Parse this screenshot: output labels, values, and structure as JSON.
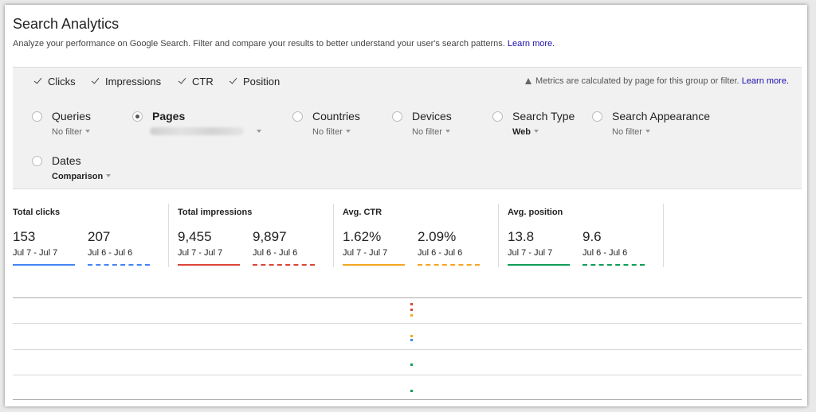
{
  "header": {
    "title": "Search Analytics",
    "description": "Analyze your performance on Google Search. Filter and compare your results to better understand your user's search patterns.",
    "learn_more": "Learn more."
  },
  "metrics": {
    "items": [
      {
        "label": "Clicks",
        "checked": true
      },
      {
        "label": "Impressions",
        "checked": true
      },
      {
        "label": "CTR",
        "checked": true
      },
      {
        "label": "Position",
        "checked": true
      }
    ],
    "note": "Metrics are calculated by page for this group or filter.",
    "note_link": "Learn more."
  },
  "dimensions": [
    {
      "label": "Queries",
      "filter": "No filter",
      "selected": false
    },
    {
      "label": "Pages",
      "filter": "",
      "selected": true
    },
    {
      "label": "Countries",
      "filter": "No filter",
      "selected": false
    },
    {
      "label": "Devices",
      "filter": "No filter",
      "selected": false
    },
    {
      "label": "Search Type",
      "filter": "Web",
      "selected": false
    },
    {
      "label": "Search Appearance",
      "filter": "No filter",
      "selected": false
    },
    {
      "label": "Dates",
      "filter": "Comparison",
      "selected": false
    }
  ],
  "totals": [
    {
      "label": "Total clicks",
      "a_value": "153",
      "a_date": "Jul 7 - Jul 7",
      "b_value": "207",
      "b_date": "Jul 6 - Jul 6",
      "color": "#4285f4"
    },
    {
      "label": "Total impressions",
      "a_value": "9,455",
      "a_date": "Jul 7 - Jul 7",
      "b_value": "9,897",
      "b_date": "Jul 6 - Jul 6",
      "color": "#db4437"
    },
    {
      "label": "Avg. CTR",
      "a_value": "1.62%",
      "a_date": "Jul 7 - Jul 7",
      "b_value": "2.09%",
      "b_date": "Jul 6 - Jul 6",
      "color": "#f4a522"
    },
    {
      "label": "Avg. position",
      "a_value": "13.8",
      "a_date": "Jul 7 - Jul 7",
      "b_value": "9.6",
      "b_date": "Jul 6 - Jul 6",
      "color": "#0f9d58"
    }
  ],
  "chart_data": {
    "type": "scatter",
    "series": [
      {
        "color": "#db4437"
      },
      {
        "color": "#f4a522"
      },
      {
        "color": "#4285f4"
      },
      {
        "color": "#0f9d58"
      }
    ]
  }
}
